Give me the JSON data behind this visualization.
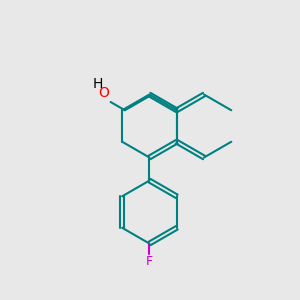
{
  "background_color": "#e8e8e8",
  "bond_color": "#008080",
  "OH_O_color": "#ff0000",
  "F_color": "#cc00cc",
  "bond_width": 1.5,
  "figsize": [
    3.0,
    3.0
  ],
  "dpi": 100,
  "xlim": [
    0,
    10
  ],
  "ylim": [
    0,
    10
  ]
}
